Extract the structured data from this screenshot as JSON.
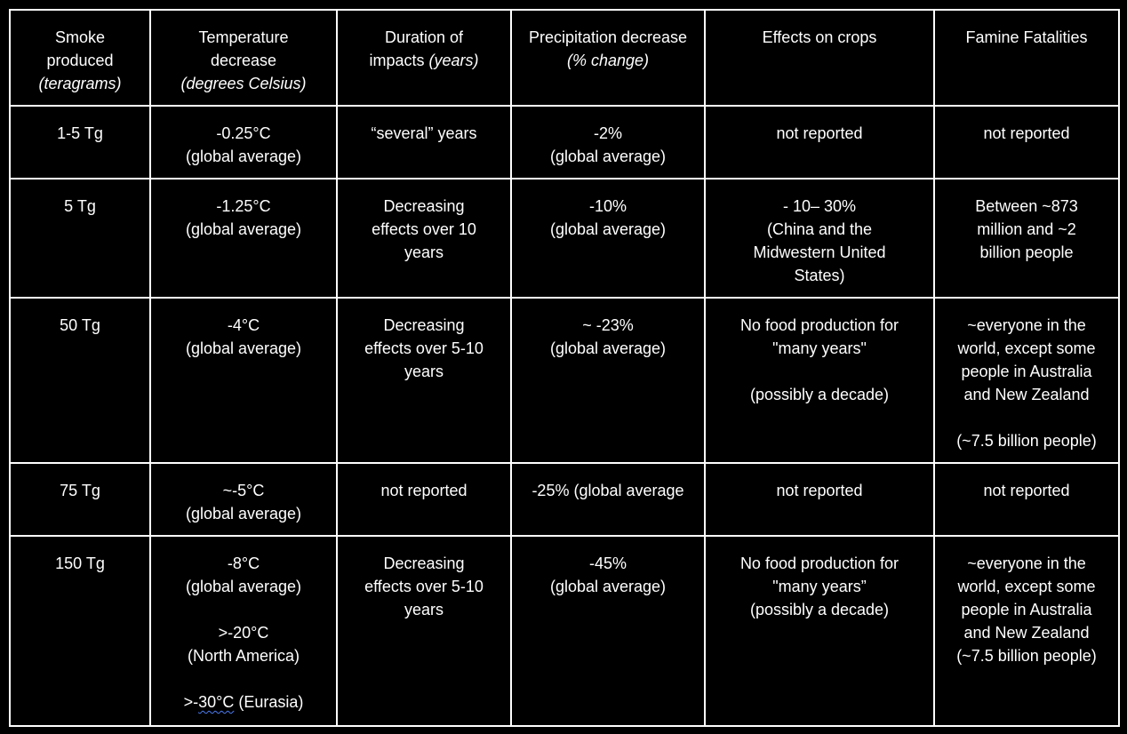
{
  "headers": [
    {
      "main": "Smoke\nproduced",
      "italic": "(teragrams)"
    },
    {
      "main": "Temperature\ndecrease",
      "italic": "(degrees Celsius)"
    },
    {
      "main": "Duration of\nimpacts",
      "italic": "(years)"
    },
    {
      "main": "Precipitation decrease",
      "italic": "(% change)"
    },
    {
      "main": "Effects on crops",
      "italic": ""
    },
    {
      "main": "Famine Fatalities",
      "italic": ""
    }
  ],
  "rows": [
    {
      "smoke": "1-5 Tg",
      "temperature": "-0.25°C\n(global average)",
      "duration": "“several” years",
      "precipitation": "-2%\n(global average)",
      "crops": "not reported",
      "famine": "not reported"
    },
    {
      "smoke": "5 Tg",
      "temperature": "-1.25°C\n(global average)",
      "duration": "Decreasing\neffects over 10\nyears",
      "precipitation": "-10%\n(global average)",
      "crops": "- 10– 30%\n(China and the\nMidwestern United\nStates)",
      "famine": "Between ~873\nmillion and ~2\nbillion people"
    },
    {
      "smoke": "50 Tg",
      "temperature": "-4°C\n(global average)",
      "duration": "Decreasing\neffects over 5-10\nyears",
      "precipitation": "~ -23%\n(global average)",
      "crops_a": "No food production for\n\"many years\"",
      "crops_b": "(possibly a decade)",
      "famine_a": "~everyone in the\nworld, except some\npeople in Australia\nand New Zealand",
      "famine_b": "(~7.5 billion people)"
    },
    {
      "smoke": "75 Tg",
      "temperature": "~-5°C\n(global average)",
      "duration": "not reported",
      "precipitation": "-25% (global average",
      "crops": "not reported",
      "famine": "not reported"
    },
    {
      "smoke": "150 Tg",
      "temperature_a": "-8°C\n(global average)",
      "temperature_b": ">-20°C\n(North America)",
      "temperature_c_prefix": ">-",
      "temperature_c_underlined": "30°C",
      "temperature_c_suffix": " (Eurasia)",
      "duration": "Decreasing\neffects over 5-10\nyears",
      "precipitation": "-45%\n(global average)",
      "crops": "No food production for\n\"many years”\n(possibly a decade)",
      "famine": "~everyone in the\nworld, except some\npeople in Australia\nand New Zealand\n(~7.5 billion people)"
    }
  ]
}
